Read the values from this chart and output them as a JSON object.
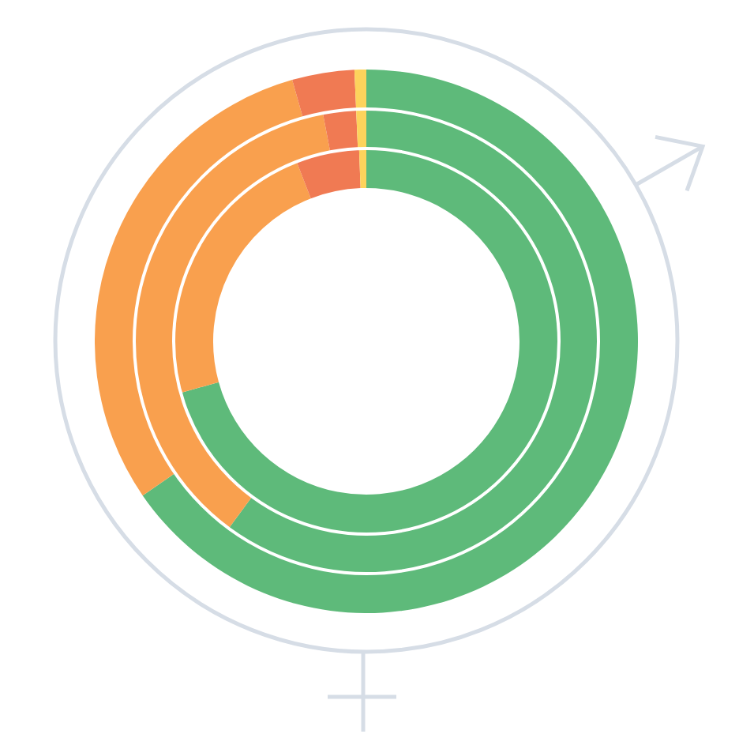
{
  "chart_data": {
    "type": "donut",
    "categories": [
      null,
      null,
      null,
      null
    ],
    "colors": [
      "#5eba7a",
      "#f9a04e",
      "#f07a53",
      "#fdd35c"
    ],
    "series": [
      {
        "values": [
          65.4,
          30.2,
          3.7,
          0.7
        ]
      },
      {
        "values": [
          60.1,
          36.9,
          2.3,
          0.7
        ]
      },
      {
        "values": [
          70.7,
          23.4,
          5.3,
          0.6
        ]
      }
    ]
  }
}
